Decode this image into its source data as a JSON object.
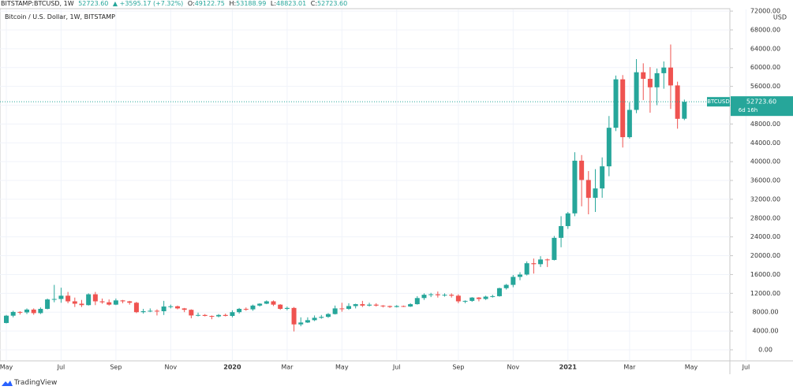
{
  "header": {
    "symbol": "BITSTAMP:BTCUSD, 1W",
    "last": "52723.60",
    "change": "▲ +3595.17 (+7.32%)",
    "o_label": "O:",
    "o": "49122.75",
    "h_label": "H:",
    "h": "53188.99",
    "l_label": "L:",
    "l": "48823.01",
    "c_label": "C:",
    "c": "52723.60"
  },
  "footer": {
    "brand": "TradingView"
  },
  "chart_data": {
    "type": "candlestick",
    "title": "Bitcoin / U.S. Dollar, 1W, BITSTAMP",
    "currency": "USD",
    "symbol_label": "BTCUSD",
    "last_price": {
      "value": 52723.6,
      "label": "52723.60"
    },
    "countdown": "6d 16h",
    "up_color": "#26a69a",
    "down_color": "#ef5350",
    "grid": true,
    "ylim": [
      -2350,
      72350
    ],
    "yticks": [
      {
        "value": 0,
        "label": "0.00"
      },
      {
        "value": 4000,
        "label": "4000.00"
      },
      {
        "value": 8000,
        "label": "8000.00"
      },
      {
        "value": 12000,
        "label": "12000.00"
      },
      {
        "value": 16000,
        "label": "16000.00"
      },
      {
        "value": 20000,
        "label": "20000.00"
      },
      {
        "value": 24000,
        "label": "24000.00"
      },
      {
        "value": 28000,
        "label": "28000.00"
      },
      {
        "value": 32000,
        "label": "32000.00"
      },
      {
        "value": 36000,
        "label": "36000.00"
      },
      {
        "value": 40000,
        "label": "40000.00"
      },
      {
        "value": 44000,
        "label": "44000.00"
      },
      {
        "value": 48000,
        "label": "48000.00"
      },
      {
        "value": 52000,
        "label": "52000.00"
      },
      {
        "value": 56000,
        "label": "56000.00"
      },
      {
        "value": 60000,
        "label": "60000.00"
      },
      {
        "value": 64000,
        "label": "64000.00"
      },
      {
        "value": 68000,
        "label": "68000.00"
      },
      {
        "value": 72000,
        "label": "72000.00"
      }
    ],
    "categories": [
      "May",
      null,
      null,
      null,
      null,
      null,
      null,
      null,
      "Jul",
      null,
      null,
      null,
      null,
      null,
      null,
      null,
      "Sep",
      null,
      null,
      null,
      null,
      null,
      null,
      null,
      "Nov",
      null,
      null,
      null,
      null,
      null,
      null,
      null,
      null,
      "2020",
      null,
      null,
      null,
      null,
      null,
      null,
      null,
      "Mar",
      null,
      null,
      null,
      null,
      null,
      null,
      null,
      "May",
      null,
      null,
      null,
      null,
      null,
      null,
      null,
      "Jul",
      null,
      null,
      null,
      null,
      null,
      null,
      null,
      null,
      "Sep",
      null,
      null,
      null,
      null,
      null,
      null,
      null,
      "Nov",
      null,
      null,
      null,
      null,
      null,
      null,
      null,
      "2021",
      null,
      null,
      null,
      null,
      null,
      null,
      null,
      null,
      "Mar",
      null,
      null,
      null,
      null,
      null,
      null,
      null,
      null,
      "May",
      null,
      null,
      null,
      null,
      null,
      null,
      null,
      "Jul",
      null
    ],
    "values": [
      [
        5700,
        7400,
        5600,
        7250
      ],
      [
        7250,
        8300,
        6900,
        8050
      ],
      [
        8050,
        8200,
        7500,
        7950
      ],
      [
        7950,
        8800,
        7600,
        8550
      ],
      [
        8550,
        8800,
        7450,
        7800
      ],
      [
        7800,
        9000,
        7600,
        8700
      ],
      [
        8700,
        10900,
        8600,
        10700
      ],
      [
        10700,
        13800,
        10100,
        10800
      ],
      [
        10800,
        13200,
        10000,
        11500
      ],
      [
        11500,
        12300,
        9900,
        10300
      ],
      [
        10300,
        11100,
        9100,
        9800
      ],
      [
        9800,
        10600,
        9100,
        9500
      ],
      [
        9500,
        12000,
        9400,
        11800
      ],
      [
        11800,
        12300,
        9500,
        10300
      ],
      [
        10300,
        10900,
        9800,
        10100
      ],
      [
        10100,
        10700,
        9400,
        9600
      ],
      [
        9600,
        10900,
        9500,
        10500
      ],
      [
        10500,
        10600,
        9900,
        10300
      ],
      [
        10300,
        10400,
        9600,
        10000
      ],
      [
        10000,
        10200,
        7800,
        8000
      ],
      [
        8000,
        8700,
        7700,
        8200
      ],
      [
        8200,
        8800,
        8000,
        8300
      ],
      [
        8300,
        8600,
        7300,
        8200
      ],
      [
        8200,
        10400,
        7400,
        9200
      ],
      [
        9200,
        9600,
        8800,
        9250
      ],
      [
        9250,
        9400,
        8600,
        8800
      ],
      [
        8800,
        8900,
        8000,
        8500
      ],
      [
        8500,
        8600,
        6700,
        7300
      ],
      [
        7300,
        7900,
        7100,
        7400
      ],
      [
        7400,
        7600,
        7100,
        7200
      ],
      [
        7200,
        7300,
        6500,
        7100
      ],
      [
        7100,
        7600,
        6900,
        7400
      ],
      [
        7400,
        7700,
        7100,
        7200
      ],
      [
        7200,
        8400,
        6900,
        8000
      ],
      [
        8000,
        8900,
        7700,
        8700
      ],
      [
        8700,
        9000,
        8300,
        8600
      ],
      [
        8600,
        9600,
        8300,
        9400
      ],
      [
        9400,
        9900,
        9200,
        9800
      ],
      [
        9800,
        10500,
        9700,
        10300
      ],
      [
        10300,
        10500,
        9300,
        9600
      ],
      [
        9600,
        9700,
        8500,
        8700
      ],
      [
        8700,
        9200,
        8400,
        8900
      ],
      [
        8900,
        9100,
        3900,
        5400
      ],
      [
        5400,
        6900,
        5000,
        5800
      ],
      [
        5800,
        6900,
        5700,
        6300
      ],
      [
        6300,
        7300,
        6100,
        6800
      ],
      [
        6800,
        7400,
        6600,
        7000
      ],
      [
        7000,
        7800,
        6800,
        7600
      ],
      [
        7600,
        9400,
        7500,
        8800
      ],
      [
        8800,
        10000,
        8100,
        8700
      ],
      [
        8700,
        9900,
        8500,
        9300
      ],
      [
        9300,
        9800,
        8800,
        9700
      ],
      [
        9700,
        10400,
        9100,
        9400
      ],
      [
        9400,
        10000,
        9200,
        9600
      ],
      [
        9600,
        9900,
        9200,
        9400
      ],
      [
        9400,
        9500,
        9000,
        9300
      ],
      [
        9300,
        9400,
        8900,
        9100
      ],
      [
        9100,
        9500,
        9000,
        9300
      ],
      [
        9300,
        9400,
        9100,
        9200
      ],
      [
        9200,
        9900,
        9100,
        9700
      ],
      [
        9700,
        11400,
        9600,
        11000
      ],
      [
        11000,
        12000,
        10600,
        11700
      ],
      [
        11700,
        12100,
        11200,
        11800
      ],
      [
        11800,
        12400,
        11100,
        11600
      ],
      [
        11600,
        12000,
        11300,
        11700
      ],
      [
        11700,
        12000,
        11100,
        11500
      ],
      [
        11500,
        11800,
        9900,
        10300
      ],
      [
        10300,
        10500,
        9900,
        10400
      ],
      [
        10400,
        11200,
        10200,
        11100
      ],
      [
        11100,
        11200,
        10300,
        10800
      ],
      [
        10800,
        11500,
        10600,
        11300
      ],
      [
        11300,
        11700,
        11100,
        11400
      ],
      [
        11400,
        13200,
        11300,
        13100
      ],
      [
        13100,
        14000,
        12800,
        13800
      ],
      [
        13800,
        15900,
        13300,
        15500
      ],
      [
        15500,
        16500,
        14800,
        16000
      ],
      [
        16000,
        18800,
        15800,
        18400
      ],
      [
        18400,
        19400,
        16200,
        18200
      ],
      [
        18200,
        19900,
        17600,
        19200
      ],
      [
        19200,
        19400,
        17600,
        19100
      ],
      [
        19100,
        24200,
        19000,
        23800
      ],
      [
        23800,
        28400,
        21800,
        26300
      ],
      [
        26300,
        29300,
        25700,
        29000
      ],
      [
        29000,
        42000,
        28400,
        40200
      ],
      [
        40200,
        41400,
        30500,
        36100
      ],
      [
        36100,
        38000,
        28800,
        32300
      ],
      [
        32300,
        38400,
        29300,
        34300
      ],
      [
        34300,
        40900,
        32300,
        39000
      ],
      [
        39000,
        49700,
        36900,
        47200
      ],
      [
        47200,
        58300,
        46500,
        57500
      ],
      [
        57500,
        58400,
        43000,
        45200
      ],
      [
        45200,
        52600,
        44900,
        51000
      ],
      [
        51000,
        61800,
        50300,
        59000
      ],
      [
        59000,
        60900,
        53100,
        57600
      ],
      [
        57600,
        60100,
        50400,
        55800
      ],
      [
        55800,
        59800,
        52000,
        58800
      ],
      [
        58800,
        61300,
        55500,
        60000
      ],
      [
        60000,
        64900,
        51200,
        56200
      ],
      [
        56200,
        57000,
        47000,
        49100
      ],
      [
        49122.75,
        53188.99,
        48823.01,
        52723.6
      ],
      null,
      null,
      null,
      null,
      null,
      null,
      null,
      null,
      null,
      null
    ]
  }
}
